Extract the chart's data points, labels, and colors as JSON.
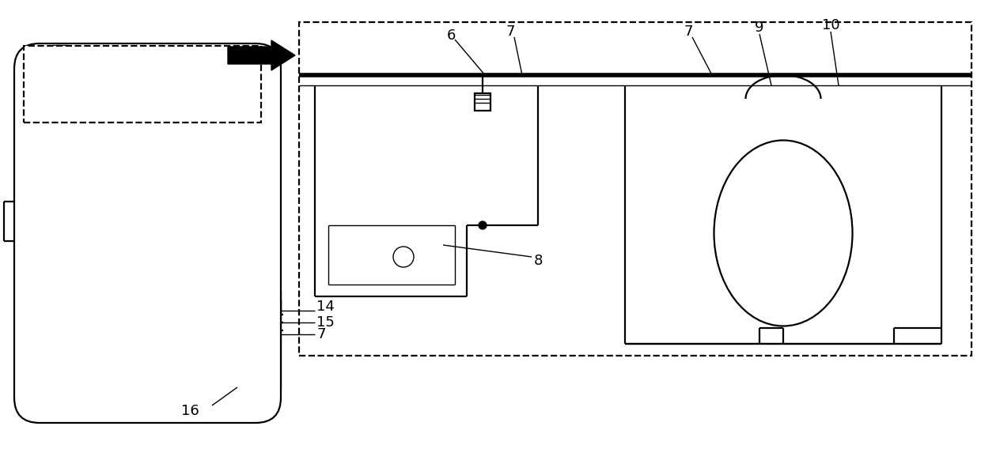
{
  "bg_color": "#ffffff",
  "line_color": "#000000",
  "lw_thin": 1.0,
  "lw_med": 1.6,
  "lw_thick": 4.0,
  "fig_width": 12.4,
  "fig_height": 5.82
}
